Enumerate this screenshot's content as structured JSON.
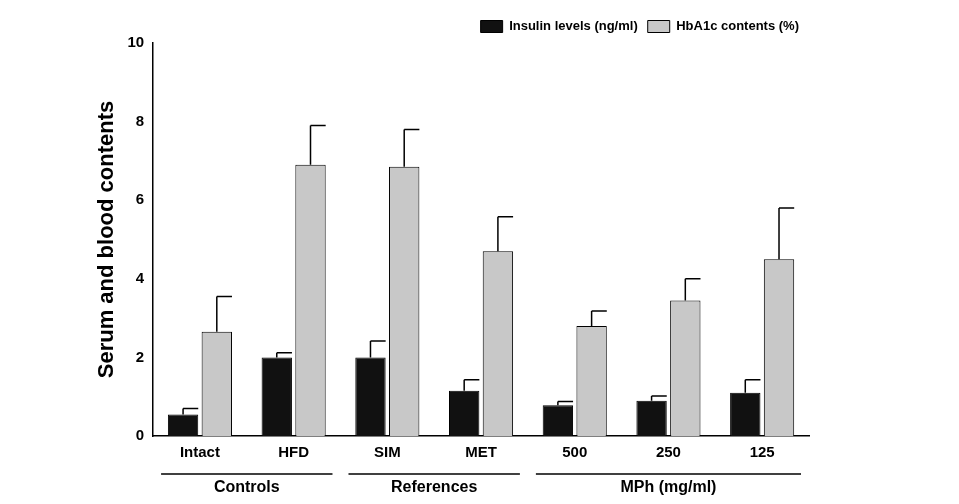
{
  "chart_data": {
    "type": "bar",
    "y_label": "Serum and blood contents",
    "categories": [
      "Intact",
      "HFD",
      "SIM",
      "MET",
      "500",
      "250",
      "125"
    ],
    "category_groups": [
      {
        "label": "Controls",
        "categories": [
          "Intact",
          "HFD"
        ]
      },
      {
        "label": "References",
        "categories": [
          "SIM",
          "MET"
        ]
      },
      {
        "label": "MPh (mg/ml)",
        "categories": [
          "500",
          "250",
          "125"
        ]
      }
    ],
    "series": [
      {
        "name": "Insulin levels (ng/ml)",
        "color": "#111111",
        "values": [
          0.55,
          2.0,
          2.0,
          1.15,
          0.78,
          0.9,
          1.1
        ],
        "errors": [
          0.15,
          0.12,
          0.42,
          0.28,
          0.1,
          0.12,
          0.33
        ]
      },
      {
        "name": "HbA1c contents (%)",
        "color": "#c8c8c8",
        "values": [
          2.65,
          6.9,
          6.85,
          4.7,
          2.8,
          3.45,
          4.5
        ],
        "errors": [
          0.9,
          1.0,
          0.95,
          0.88,
          0.38,
          0.55,
          1.3
        ]
      }
    ],
    "ylim": [
      0,
      10
    ],
    "yticks": [
      0,
      2,
      4,
      6,
      8,
      10
    ],
    "grid": false,
    "legend": "top-right"
  }
}
